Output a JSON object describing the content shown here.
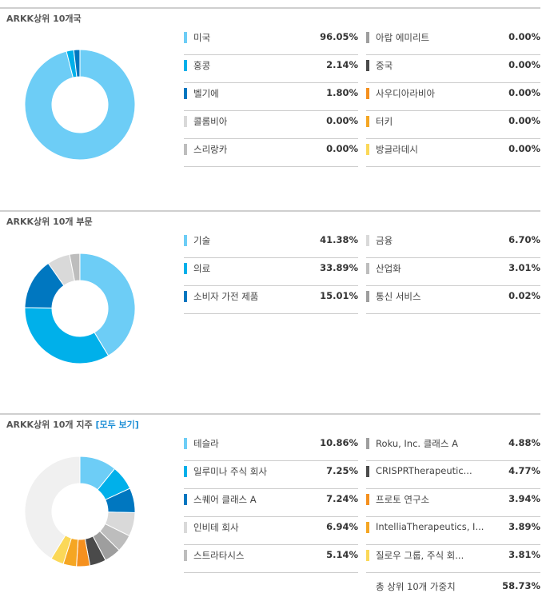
{
  "sections": [
    {
      "title": "ARKK상위 10개국",
      "link": "",
      "left": [
        {
          "label": "미국",
          "value": "96.05%",
          "color": "#6dcdf6"
        },
        {
          "label": "홍콩",
          "value": "2.14%",
          "color": "#00b0ea"
        },
        {
          "label": "벨기에",
          "value": "1.80%",
          "color": "#0077c0"
        },
        {
          "label": "콜롬비아",
          "value": "0.00%",
          "color": "#d9d9d9"
        },
        {
          "label": "스리랑카",
          "value": "0.00%",
          "color": "#bdbdbd"
        }
      ],
      "right": [
        {
          "label": "아랍 에미리트",
          "value": "0.00%",
          "color": "#9e9e9e"
        },
        {
          "label": "중국",
          "value": "0.00%",
          "color": "#4a4a4a"
        },
        {
          "label": "사우디아라비아",
          "value": "0.00%",
          "color": "#f5901e"
        },
        {
          "label": "터키",
          "value": "0.00%",
          "color": "#f5a623"
        },
        {
          "label": "방글라데시",
          "value": "0.00%",
          "color": "#fbd858"
        }
      ]
    },
    {
      "title": "ARKK상위 10개 부문",
      "link": "",
      "left": [
        {
          "label": "기술",
          "value": "41.38%",
          "color": "#6dcdf6"
        },
        {
          "label": "의료",
          "value": "33.89%",
          "color": "#00b0ea"
        },
        {
          "label": "소비자 가전 제품",
          "value": "15.01%",
          "color": "#0077c0"
        }
      ],
      "right": [
        {
          "label": "금융",
          "value": "6.70%",
          "color": "#d9d9d9"
        },
        {
          "label": "산업화",
          "value": "3.01%",
          "color": "#bdbdbd"
        },
        {
          "label": "통신 서비스",
          "value": "0.02%",
          "color": "#9e9e9e"
        }
      ]
    },
    {
      "title": "ARKK상위 10개 지주 ",
      "link": "[모두 보기]",
      "left": [
        {
          "label": "테슬라",
          "value": "10.86%",
          "color": "#6dcdf6"
        },
        {
          "label": "일루미나 주식 회사",
          "value": "7.25%",
          "color": "#00b0ea"
        },
        {
          "label": "스퀘어 클래스 A",
          "value": "7.24%",
          "color": "#0077c0"
        },
        {
          "label": "인비테 회사",
          "value": "6.94%",
          "color": "#d9d9d9"
        },
        {
          "label": "스트라타시스",
          "value": "5.14%",
          "color": "#bdbdbd"
        }
      ],
      "right": [
        {
          "label": "Roku, Inc. 클래스 A",
          "value": "4.88%",
          "color": "#9e9e9e"
        },
        {
          "label": "CRISPRTherapeutic...",
          "value": "4.77%",
          "color": "#4a4a4a"
        },
        {
          "label": "프로토 연구소",
          "value": "3.94%",
          "color": "#f5901e"
        },
        {
          "label": "IntelliaTherapeutics, I...",
          "value": "3.89%",
          "color": "#f5a623"
        },
        {
          "label": "질로우 그룹, 주식 회...",
          "value": "3.81%",
          "color": "#fbd858"
        }
      ],
      "total": {
        "label": "총 상위 10개 가중치",
        "value": "58.73%"
      }
    }
  ],
  "chart_data": [
    {
      "type": "pie",
      "title": "ARKK상위 10개국",
      "categories": [
        "미국",
        "홍콩",
        "벨기에",
        "콜롬비아",
        "스리랑카",
        "아랍 에미리트",
        "중국",
        "사우디아라비아",
        "터키",
        "방글라데시"
      ],
      "values": [
        96.05,
        2.14,
        1.8,
        0,
        0,
        0,
        0,
        0,
        0,
        0
      ]
    },
    {
      "type": "pie",
      "title": "ARKK상위 10개 부문",
      "categories": [
        "기술",
        "의료",
        "소비자 가전 제품",
        "금융",
        "산업화",
        "통신 서비스"
      ],
      "values": [
        41.38,
        33.89,
        15.01,
        6.7,
        3.01,
        0.02
      ]
    },
    {
      "type": "pie",
      "title": "ARKK상위 10개 지주",
      "categories": [
        "테슬라",
        "일루미나 주식 회사",
        "스퀘어 클래스 A",
        "인비테 회사",
        "스트라타시스",
        "Roku, Inc. 클래스 A",
        "CRISPRTherapeutic...",
        "프로토 연구소",
        "IntelliaTherapeutics, I...",
        "질로우 그룹, 주식 회..."
      ],
      "values": [
        10.86,
        7.25,
        7.24,
        6.94,
        5.14,
        4.88,
        4.77,
        3.94,
        3.89,
        3.81
      ],
      "remainder_color": "#f0f0f0"
    }
  ]
}
